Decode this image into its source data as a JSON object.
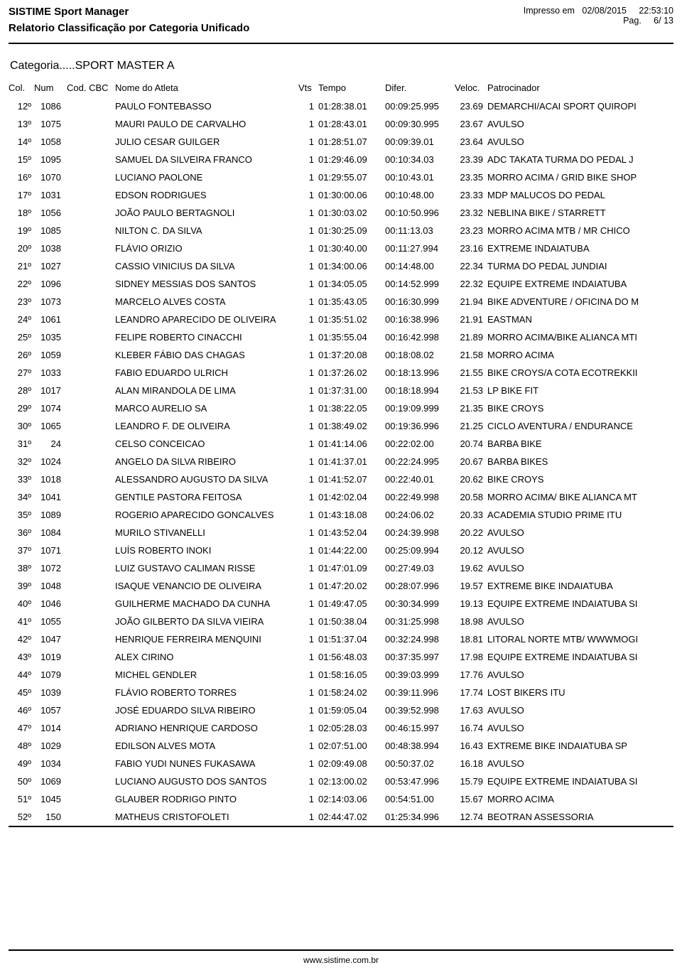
{
  "header": {
    "title": "SISTIME Sport Manager",
    "subtitle": "Relatorio Classificação por Categoria Unificado",
    "printed_label": "Impresso em",
    "printed_date": "02/08/2015",
    "printed_time": "22:53:10",
    "page_label": "Pag.",
    "page_current": "6",
    "page_sep": "/",
    "page_total": "13"
  },
  "category_label": "Categoria.....SPORT MASTER A",
  "columns": {
    "col": "Col.",
    "num": "Num",
    "cbc": "Cod. CBC",
    "nome": "Nome do Atleta",
    "vts": "Vts",
    "tempo": "Tempo",
    "difer": "Difer.",
    "veloc": "Veloc.",
    "patro": "Patrocinador"
  },
  "rows": [
    {
      "col": "12º",
      "num": "1086",
      "cbc": "",
      "nome": "PAULO FONTEBASSO",
      "vts": "1",
      "tempo": "01:28:38.01",
      "difer": "00:09:25.995",
      "veloc": "23.69",
      "patro": "DEMARCHI/ACAI SPORT QUIROPI"
    },
    {
      "col": "13º",
      "num": "1075",
      "cbc": "",
      "nome": "MAURI PAULO DE CARVALHO",
      "vts": "1",
      "tempo": "01:28:43.01",
      "difer": "00:09:30.995",
      "veloc": "23.67",
      "patro": "AVULSO"
    },
    {
      "col": "14º",
      "num": "1058",
      "cbc": "",
      "nome": "JULIO CESAR GUILGER",
      "vts": "1",
      "tempo": "01:28:51.07",
      "difer": "00:09:39.01",
      "veloc": "23.64",
      "patro": "AVULSO"
    },
    {
      "col": "15º",
      "num": "1095",
      "cbc": "",
      "nome": "SAMUEL DA SILVEIRA FRANCO",
      "vts": "1",
      "tempo": "01:29:46.09",
      "difer": "00:10:34.03",
      "veloc": "23.39",
      "patro": "ADC TAKATA TURMA DO PEDAL J"
    },
    {
      "col": "16º",
      "num": "1070",
      "cbc": "",
      "nome": "LUCIANO PAOLONE",
      "vts": "1",
      "tempo": "01:29:55.07",
      "difer": "00:10:43.01",
      "veloc": "23.35",
      "patro": "MORRO ACIMA / GRID BIKE SHOP"
    },
    {
      "col": "17º",
      "num": "1031",
      "cbc": "",
      "nome": "EDSON RODRIGUES",
      "vts": "1",
      "tempo": "01:30:00.06",
      "difer": "00:10:48.00",
      "veloc": "23.33",
      "patro": "MDP MALUCOS DO PEDAL"
    },
    {
      "col": "18º",
      "num": "1056",
      "cbc": "",
      "nome": "JOÃO PAULO BERTAGNOLI",
      "vts": "1",
      "tempo": "01:30:03.02",
      "difer": "00:10:50.996",
      "veloc": "23.32",
      "patro": "NEBLINA BIKE / STARRETT"
    },
    {
      "col": "19º",
      "num": "1085",
      "cbc": "",
      "nome": "NILTON C. DA SILVA",
      "vts": "1",
      "tempo": "01:30:25.09",
      "difer": "00:11:13.03",
      "veloc": "23.23",
      "patro": "MORRO ACIMA MTB / MR CHICO"
    },
    {
      "col": "20º",
      "num": "1038",
      "cbc": "",
      "nome": "FLÁVIO ORIZIO",
      "vts": "1",
      "tempo": "01:30:40.00",
      "difer": "00:11:27.994",
      "veloc": "23.16",
      "patro": "EXTREME INDAIATUBA"
    },
    {
      "col": "21º",
      "num": "1027",
      "cbc": "",
      "nome": "CASSIO VINICIUS DA SILVA",
      "vts": "1",
      "tempo": "01:34:00.06",
      "difer": "00:14:48.00",
      "veloc": "22.34",
      "patro": "TURMA DO PEDAL JUNDIAI"
    },
    {
      "col": "22º",
      "num": "1096",
      "cbc": "",
      "nome": "SIDNEY MESSIAS DOS SANTOS",
      "vts": "1",
      "tempo": "01:34:05.05",
      "difer": "00:14:52.999",
      "veloc": "22.32",
      "patro": "EQUIPE EXTREME INDAIATUBA"
    },
    {
      "col": "23º",
      "num": "1073",
      "cbc": "",
      "nome": "MARCELO ALVES COSTA",
      "vts": "1",
      "tempo": "01:35:43.05",
      "difer": "00:16:30.999",
      "veloc": "21.94",
      "patro": "BIKE ADVENTURE / OFICINA DO M"
    },
    {
      "col": "24º",
      "num": "1061",
      "cbc": "",
      "nome": "LEANDRO APARECIDO DE OLIVEIRA",
      "vts": "1",
      "tempo": "01:35:51.02",
      "difer": "00:16:38.996",
      "veloc": "21.91",
      "patro": "EASTMAN"
    },
    {
      "col": "25º",
      "num": "1035",
      "cbc": "",
      "nome": "FELIPE ROBERTO CINACCHI",
      "vts": "1",
      "tempo": "01:35:55.04",
      "difer": "00:16:42.998",
      "veloc": "21.89",
      "patro": "MORRO ACIMA/BIKE ALIANCA MTI"
    },
    {
      "col": "26º",
      "num": "1059",
      "cbc": "",
      "nome": "KLEBER FÁBIO DAS CHAGAS",
      "vts": "1",
      "tempo": "01:37:20.08",
      "difer": "00:18:08.02",
      "veloc": "21.58",
      "patro": "MORRO ACIMA"
    },
    {
      "col": "27º",
      "num": "1033",
      "cbc": "",
      "nome": "FABIO EDUARDO ULRICH",
      "vts": "1",
      "tempo": "01:37:26.02",
      "difer": "00:18:13.996",
      "veloc": "21.55",
      "patro": "BIKE CROYS/A COTA ECOTREKKII"
    },
    {
      "col": "28º",
      "num": "1017",
      "cbc": "",
      "nome": "ALAN MIRANDOLA DE LIMA",
      "vts": "1",
      "tempo": "01:37:31.00",
      "difer": "00:18:18.994",
      "veloc": "21.53",
      "patro": "LP BIKE FIT"
    },
    {
      "col": "29º",
      "num": "1074",
      "cbc": "",
      "nome": "MARCO AURELIO SA",
      "vts": "1",
      "tempo": "01:38:22.05",
      "difer": "00:19:09.999",
      "veloc": "21.35",
      "patro": "BIKE CROYS"
    },
    {
      "col": "30º",
      "num": "1065",
      "cbc": "",
      "nome": "LEANDRO F. DE OLIVEIRA",
      "vts": "1",
      "tempo": "01:38:49.02",
      "difer": "00:19:36.996",
      "veloc": "21.25",
      "patro": "CICLO AVENTURA / ENDURANCE "
    },
    {
      "col": "31º",
      "num": "24",
      "cbc": "",
      "nome": "CELSO CONCEICAO",
      "vts": "1",
      "tempo": "01:41:14.06",
      "difer": "00:22:02.00",
      "veloc": "20.74",
      "patro": "BARBA BIKE"
    },
    {
      "col": "32º",
      "num": "1024",
      "cbc": "",
      "nome": "ANGELO DA SILVA RIBEIRO",
      "vts": "1",
      "tempo": "01:41:37.01",
      "difer": "00:22:24.995",
      "veloc": "20.67",
      "patro": "BARBA BIKES"
    },
    {
      "col": "33º",
      "num": "1018",
      "cbc": "",
      "nome": "ALESSANDRO AUGUSTO DA SILVA",
      "vts": "1",
      "tempo": "01:41:52.07",
      "difer": "00:22:40.01",
      "veloc": "20.62",
      "patro": "BIKE CROYS"
    },
    {
      "col": "34º",
      "num": "1041",
      "cbc": "",
      "nome": "GENTILE PASTORA FEITOSA",
      "vts": "1",
      "tempo": "01:42:02.04",
      "difer": "00:22:49.998",
      "veloc": "20.58",
      "patro": "MORRO ACIMA/ BIKE ALIANCA MT"
    },
    {
      "col": "35º",
      "num": "1089",
      "cbc": "",
      "nome": "ROGERIO APARECIDO GONCALVES",
      "vts": "1",
      "tempo": "01:43:18.08",
      "difer": "00:24:06.02",
      "veloc": "20.33",
      "patro": "ACADEMIA STUDIO PRIME ITU"
    },
    {
      "col": "36º",
      "num": "1084",
      "cbc": "",
      "nome": "MURILO STIVANELLI",
      "vts": "1",
      "tempo": "01:43:52.04",
      "difer": "00:24:39.998",
      "veloc": "20.22",
      "patro": "AVULSO"
    },
    {
      "col": "37º",
      "num": "1071",
      "cbc": "",
      "nome": "LUÍS ROBERTO INOKI",
      "vts": "1",
      "tempo": "01:44:22.00",
      "difer": "00:25:09.994",
      "veloc": "20.12",
      "patro": "AVULSO"
    },
    {
      "col": "38º",
      "num": "1072",
      "cbc": "",
      "nome": "LUIZ GUSTAVO CALIMAN RISSE",
      "vts": "1",
      "tempo": "01:47:01.09",
      "difer": "00:27:49.03",
      "veloc": "19.62",
      "patro": "AVULSO"
    },
    {
      "col": "39º",
      "num": "1048",
      "cbc": "",
      "nome": "ISAQUE VENANCIO DE OLIVEIRA",
      "vts": "1",
      "tempo": "01:47:20.02",
      "difer": "00:28:07.996",
      "veloc": "19.57",
      "patro": "EXTREME BIKE INDAIATUBA"
    },
    {
      "col": "40º",
      "num": "1046",
      "cbc": "",
      "nome": "GUILHERME MACHADO DA CUNHA",
      "vts": "1",
      "tempo": "01:49:47.05",
      "difer": "00:30:34.999",
      "veloc": "19.13",
      "patro": "EQUIPE EXTREME INDAIATUBA SI"
    },
    {
      "col": "41º",
      "num": "1055",
      "cbc": "",
      "nome": "JOÃO GILBERTO DA SILVA VIEIRA",
      "vts": "1",
      "tempo": "01:50:38.04",
      "difer": "00:31:25.998",
      "veloc": "18.98",
      "patro": "AVULSO"
    },
    {
      "col": "42º",
      "num": "1047",
      "cbc": "",
      "nome": "HENRIQUE FERREIRA MENQUINI",
      "vts": "1",
      "tempo": "01:51:37.04",
      "difer": "00:32:24.998",
      "veloc": "18.81",
      "patro": "LITORAL NORTE MTB/ WWWMOGI"
    },
    {
      "col": "43º",
      "num": "1019",
      "cbc": "",
      "nome": "ALEX CIRINO",
      "vts": "1",
      "tempo": "01:56:48.03",
      "difer": "00:37:35.997",
      "veloc": "17.98",
      "patro": "EQUIPE EXTREME INDAIATUBA SI"
    },
    {
      "col": "44º",
      "num": "1079",
      "cbc": "",
      "nome": "MICHEL GENDLER",
      "vts": "1",
      "tempo": "01:58:16.05",
      "difer": "00:39:03.999",
      "veloc": "17.76",
      "patro": "AVULSO"
    },
    {
      "col": "45º",
      "num": "1039",
      "cbc": "",
      "nome": "FLÁVIO ROBERTO TORRES",
      "vts": "1",
      "tempo": "01:58:24.02",
      "difer": "00:39:11.996",
      "veloc": "17.74",
      "patro": "LOST BIKERS ITU"
    },
    {
      "col": "46º",
      "num": "1057",
      "cbc": "",
      "nome": "JOSÉ EDUARDO SILVA RIBEIRO",
      "vts": "1",
      "tempo": "01:59:05.04",
      "difer": "00:39:52.998",
      "veloc": "17.63",
      "patro": "AVULSO"
    },
    {
      "col": "47º",
      "num": "1014",
      "cbc": "",
      "nome": "ADRIANO HENRIQUE CARDOSO",
      "vts": "1",
      "tempo": "02:05:28.03",
      "difer": "00:46:15.997",
      "veloc": "16.74",
      "patro": "AVULSO"
    },
    {
      "col": "48º",
      "num": "1029",
      "cbc": "",
      "nome": "EDILSON ALVES MOTA",
      "vts": "1",
      "tempo": "02:07:51.00",
      "difer": "00:48:38.994",
      "veloc": "16.43",
      "patro": "EXTREME BIKE INDAIATUBA SP"
    },
    {
      "col": "49º",
      "num": "1034",
      "cbc": "",
      "nome": "FABIO YUDI NUNES FUKASAWA",
      "vts": "1",
      "tempo": "02:09:49.08",
      "difer": "00:50:37.02",
      "veloc": "16.18",
      "patro": "AVULSO"
    },
    {
      "col": "50º",
      "num": "1069",
      "cbc": "",
      "nome": "LUCIANO AUGUSTO DOS SANTOS",
      "vts": "1",
      "tempo": "02:13:00.02",
      "difer": "00:53:47.996",
      "veloc": "15.79",
      "patro": "EQUIPE EXTREME INDAIATUBA SI"
    },
    {
      "col": "51º",
      "num": "1045",
      "cbc": "",
      "nome": "GLAUBER RODRIGO PINTO",
      "vts": "1",
      "tempo": "02:14:03.06",
      "difer": "00:54:51.00",
      "veloc": "15.67",
      "patro": "MORRO ACIMA"
    },
    {
      "col": "52º",
      "num": "150",
      "cbc": "",
      "nome": "MATHEUS CRISTOFOLETI",
      "vts": "1",
      "tempo": "02:44:47.02",
      "difer": "01:25:34.996",
      "veloc": "12.74",
      "patro": "BEOTRAN ASSESSORIA"
    }
  ],
  "footer_url": "www.sistime.com.br"
}
